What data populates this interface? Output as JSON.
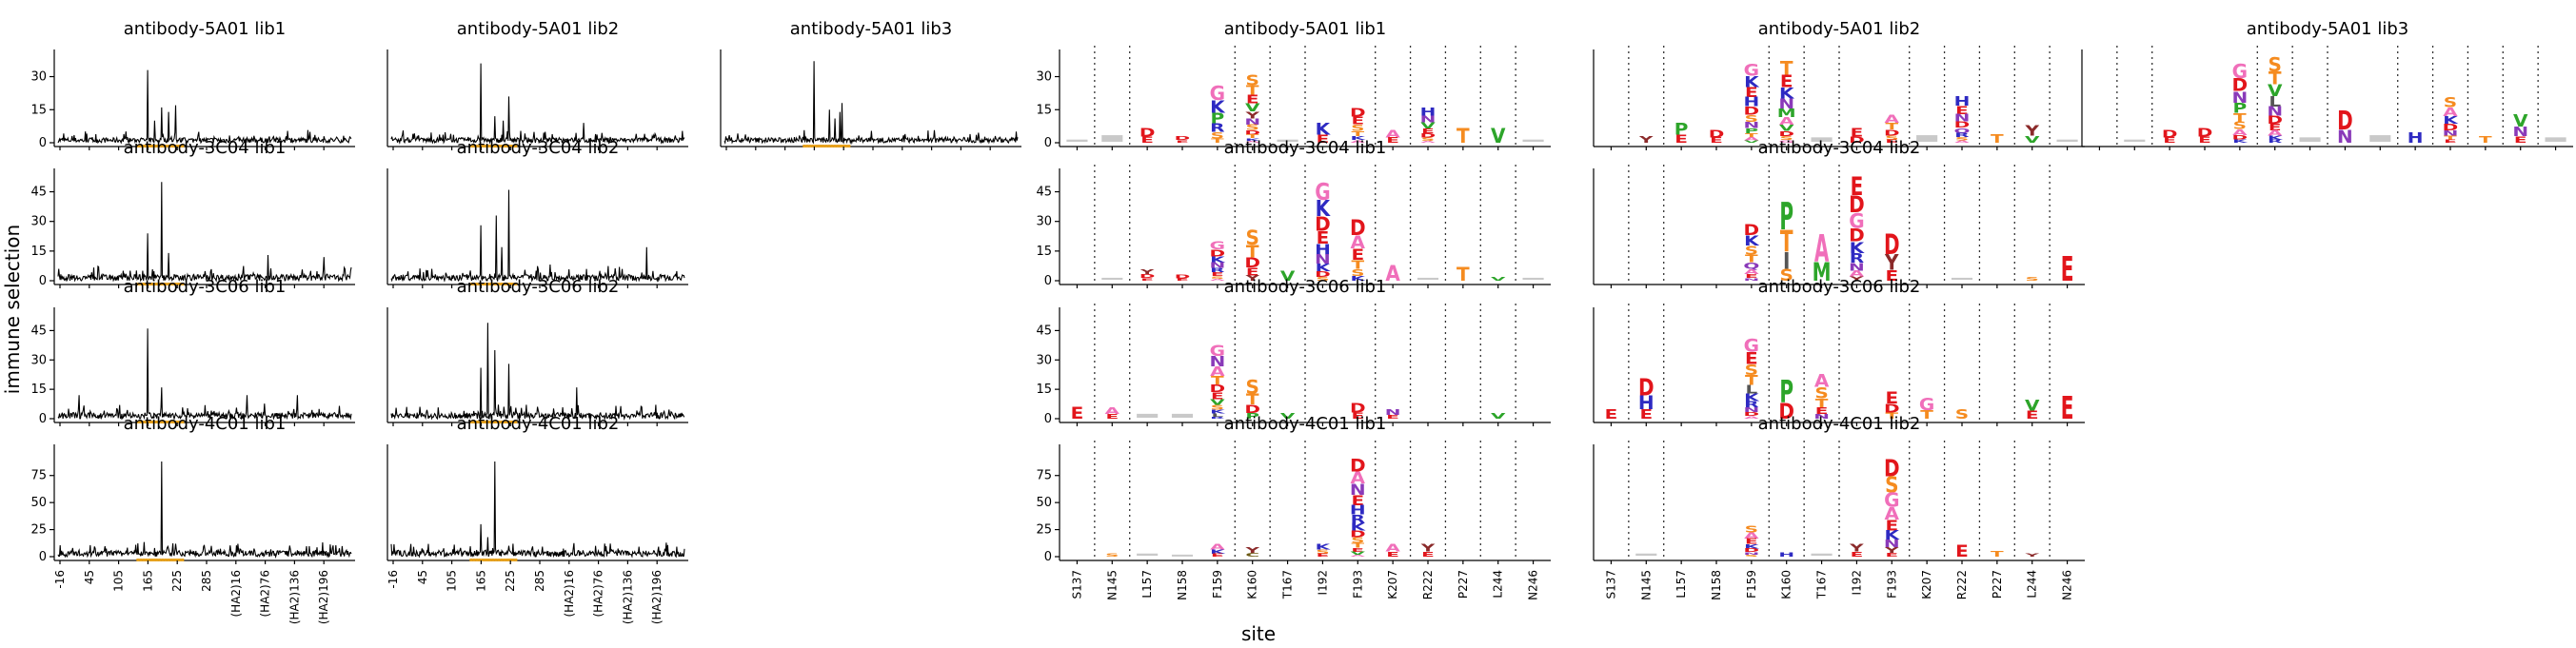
{
  "figure": {
    "ylabel": "immune selection",
    "xlabel": "site"
  },
  "colors": {
    "trace": "#000000",
    "highlight": "#e8a21d",
    "A": "#f06fba",
    "C": "#6e5c16",
    "D": "#e2151b",
    "E": "#e2151b",
    "F": "#2e2ac2",
    "G": "#f06fba",
    "H": "#2e2ac2",
    "I": "#555555",
    "K": "#2e2ac2",
    "L": "#555555",
    "M": "#2da52a",
    "N": "#8a3ab9",
    "P": "#2da52a",
    "Q": "#8a3ab9",
    "R": "#2e2ac2",
    "S": "#f58b1f",
    "T": "#f58b1f",
    "V": "#2da52a",
    "W": "#2da52a",
    "Y": "#8b2a2a"
  },
  "chart_data": {
    "type": "line",
    "sites_tick_labels": [
      "-16",
      "45",
      "105",
      "165",
      "225",
      "285",
      "(HA2)16",
      "(HA2)76",
      "(HA2)136",
      "(HA2)196"
    ],
    "logo_sites": [
      "S137",
      "N145",
      "L157",
      "N158",
      "F159",
      "K160",
      "T167",
      "I192",
      "F193",
      "K207",
      "R222",
      "P227",
      "L244",
      "N246"
    ],
    "rows": [
      {
        "yticks": [
          0,
          15,
          30
        ],
        "ymax": 38,
        "lines": [
          {
            "title": "antibody-5A01 lib1",
            "peaks": [
              [
                128,
                33
              ],
              [
                148,
                16
              ],
              [
                158,
                14
              ],
              [
                168,
                17
              ],
              [
                138,
                10
              ]
            ]
          },
          {
            "title": "antibody-5A01 lib2",
            "peaks": [
              [
                128,
                36
              ],
              [
                168,
                21
              ],
              [
                148,
                12
              ],
              [
                160,
                10
              ],
              [
                275,
                9
              ]
            ]
          },
          {
            "title": "antibody-5A01 lib3",
            "peaks": [
              [
                128,
                37
              ],
              [
                168,
                18
              ],
              [
                150,
                15
              ],
              [
                158,
                11
              ],
              [
                165,
                14
              ]
            ]
          }
        ],
        "logos": [
          {
            "title": "antibody-5A01 lib1",
            "stacks": [
              [
                "S",
                "",
                1
              ],
              [
                "N",
                "",
                3
              ],
              [
                "L",
                "DE",
                7
              ],
              [
                "N",
                "DE",
                3
              ],
              [
                "F",
                "GKPRST",
                26
              ],
              [
                "K",
                "STEVYNSDTKA",
                31
              ],
              [
                "T",
                "",
                1
              ],
              [
                "I",
                "KE",
                9
              ],
              [
                "F",
                "DESTKA",
                16
              ],
              [
                "K",
                "AE",
                6
              ],
              [
                "R",
                "HNVEDSA",
                16
              ],
              [
                "P",
                "T",
                7
              ],
              [
                "L",
                "V",
                7
              ],
              [
                "N",
                "",
                1
              ]
            ]
          },
          {
            "title": "antibody-5A01 lib2",
            "stacks": [
              [
                "S",
                "",
                0
              ],
              [
                "N",
                "Y",
                3
              ],
              [
                "L",
                "PE",
                9
              ],
              [
                "N",
                "DE",
                6
              ],
              [
                "F",
                "GKEHDSNPTAV",
                36
              ],
              [
                "K",
                "TEKNMAVDSG",
                37
              ],
              [
                "T",
                "",
                2
              ],
              [
                "I",
                "ED",
                7
              ],
              [
                "F",
                "ATDSE",
                13
              ],
              [
                "K",
                "",
                3
              ],
              [
                "R",
                "HENDQRSA",
                21
              ],
              [
                "P",
                "T",
                4
              ],
              [
                "L",
                "YV",
                8
              ],
              [
                "N",
                "",
                1
              ]
            ]
          },
          {
            "title": "antibody-5A01 lib3",
            "stacks": [
              [
                "S",
                "",
                0
              ],
              [
                "N",
                "",
                1
              ],
              [
                "L",
                "DE",
                6
              ],
              [
                "N",
                "DE",
                7
              ],
              [
                "F",
                "GDNPTSADK",
                36
              ],
              [
                "K",
                "STVLNDEAKR",
                39
              ],
              [
                "T",
                "",
                2
              ],
              [
                "I",
                "DN",
                15
              ],
              [
                "F",
                "",
                3
              ],
              [
                "K",
                "H",
                5
              ],
              [
                "R",
                "SAKDNTE",
                21
              ],
              [
                "P",
                "T",
                3
              ],
              [
                "L",
                "VNE",
                13
              ],
              [
                "N",
                "",
                2
              ]
            ]
          }
        ]
      },
      {
        "yticks": [
          0,
          15,
          30,
          45
        ],
        "ymax": 52,
        "lines": [
          {
            "title": "antibody-3C04 lib1",
            "peaks": [
              [
                128,
                24
              ],
              [
                148,
                50
              ],
              [
                158,
                14
              ],
              [
                300,
                13
              ],
              [
                380,
                12
              ]
            ]
          },
          {
            "title": "antibody-3C04 lib2",
            "peaks": [
              [
                128,
                28
              ],
              [
                150,
                33
              ],
              [
                168,
                46
              ],
              [
                158,
                17
              ],
              [
                365,
                17
              ]
            ]
          }
        ],
        "logos": [
          {
            "title": "antibody-3C04 lib1",
            "stacks": [
              [
                "S",
                "",
                0
              ],
              [
                "N",
                "",
                1
              ],
              [
                "L",
                "YDE",
                6
              ],
              [
                "N",
                "DE",
                3
              ],
              [
                "F",
                "GDKNRESA",
                20
              ],
              [
                "K",
                "STDEY",
                26
              ],
              [
                "T",
                "V",
                5
              ],
              [
                "I",
                "GKDEHNKDS",
                50
              ],
              [
                "F",
                "DAETSK",
                31
              ],
              [
                "K",
                "A",
                8
              ],
              [
                "R",
                "",
                1
              ],
              [
                "P",
                "T",
                7
              ],
              [
                "L",
                "V",
                2
              ],
              [
                "N",
                "",
                1
              ]
            ]
          },
          {
            "title": "antibody-3C04 lib2",
            "stacks": [
              [
                "S",
                "",
                0
              ],
              [
                "N",
                "",
                0
              ],
              [
                "L",
                "",
                0
              ],
              [
                "N",
                "",
                0
              ],
              [
                "F",
                "DKSTQAEN",
                29
              ],
              [
                "K",
                "PTIS",
                40
              ],
              [
                "T",
                "AM",
                24
              ],
              [
                "I",
                "EDGDKRNAY",
                53
              ],
              [
                "F",
                "DYE",
                24
              ],
              [
                "K",
                "",
                0
              ],
              [
                "R",
                "",
                1
              ],
              [
                "P",
                "",
                0
              ],
              [
                "L",
                "S",
                2
              ],
              [
                "N",
                "E",
                13
              ]
            ]
          }
        ]
      },
      {
        "yticks": [
          0,
          15,
          30,
          45
        ],
        "ymax": 52,
        "lines": [
          {
            "title": "antibody-3C06 lib1",
            "peaks": [
              [
                128,
                46
              ],
              [
                148,
                16
              ],
              [
                270,
                12
              ],
              [
                342,
                12
              ],
              [
                30,
                12
              ]
            ]
          },
          {
            "title": "antibody-3C06 lib2",
            "peaks": [
              [
                138,
                49
              ],
              [
                148,
                35
              ],
              [
                128,
                26
              ],
              [
                168,
                28
              ],
              [
                265,
                16
              ]
            ]
          }
        ],
        "logos": [
          {
            "title": "antibody-3C06 lib1",
            "stacks": [
              [
                "S",
                "E",
                6
              ],
              [
                "N",
                "AE",
                6
              ],
              [
                "L",
                "",
                2
              ],
              [
                "N",
                "",
                2
              ],
              [
                "F",
                "GNATDEVSKLR",
                38
              ],
              [
                "K",
                "STDP",
                20
              ],
              [
                "T",
                "V",
                3
              ],
              [
                "I",
                "",
                0
              ],
              [
                "F",
                "DE",
                8
              ],
              [
                "K",
                "NE",
                5
              ],
              [
                "R",
                "",
                0
              ],
              [
                "P",
                "",
                0
              ],
              [
                "L",
                "V",
                3
              ],
              [
                "N",
                "",
                0
              ]
            ]
          },
          {
            "title": "antibody-3C06 lib2",
            "stacks": [
              [
                "S",
                "E",
                5
              ],
              [
                "N",
                "DHE",
                21
              ],
              [
                "L",
                "",
                0
              ],
              [
                "N",
                "",
                0
              ],
              [
                "F",
                "GESTLKRNDA",
                41
              ],
              [
                "K",
                "PD",
                20
              ],
              [
                "T",
                "ASTEN",
                23
              ],
              [
                "I",
                "",
                0
              ],
              [
                "F",
                "EDT",
                14
              ],
              [
                "K",
                "GT",
                11
              ],
              [
                "R",
                "S",
                5
              ],
              [
                "P",
                "",
                0
              ],
              [
                "L",
                "VE",
                10
              ],
              [
                "N",
                "E",
                12
              ]
            ]
          }
        ]
      },
      {
        "yticks": [
          0,
          25,
          50,
          75
        ],
        "ymax": 95,
        "lines": [
          {
            "title": "antibody-4C01 lib1",
            "peaks": [
              [
                148,
                88
              ],
              [
                168,
                12
              ],
              [
                138,
                8
              ],
              [
                260,
                7
              ],
              [
                30,
                6
              ]
            ]
          },
          {
            "title": "antibody-4C01 lib2",
            "peaks": [
              [
                148,
                88
              ],
              [
                128,
                30
              ],
              [
                138,
                18
              ],
              [
                168,
                10
              ],
              [
                260,
                7
              ]
            ]
          }
        ],
        "logos": [
          {
            "title": "antibody-4C01 lib1",
            "stacks": [
              [
                "S",
                "",
                0
              ],
              [
                "N",
                "S",
                3
              ],
              [
                "L",
                "",
                2
              ],
              [
                "N",
                "",
                1
              ],
              [
                "F",
                "AKE",
                12
              ],
              [
                "K",
                "YC",
                9
              ],
              [
                "T",
                "",
                0
              ],
              [
                "I",
                "KSE",
                12
              ],
              [
                "F",
                "DANEHRKDSTEVA",
                91
              ],
              [
                "K",
                "AE",
                12
              ],
              [
                "R",
                "YE",
                12
              ],
              [
                "P",
                "",
                0
              ],
              [
                "L",
                "",
                0
              ],
              [
                "N",
                "",
                0
              ]
            ]
          },
          {
            "title": "antibody-4C01 lib2",
            "stacks": [
              [
                "S",
                "",
                0
              ],
              [
                "N",
                "",
                2
              ],
              [
                "L",
                "",
                0
              ],
              [
                "N",
                "",
                0
              ],
              [
                "F",
                "SAEKDNS",
                29
              ],
              [
                "K",
                "H",
                4
              ],
              [
                "T",
                "",
                2
              ],
              [
                "I",
                "YE",
                12
              ],
              [
                "F",
                "DSGAEKNYE",
                91
              ],
              [
                "K",
                "",
                0
              ],
              [
                "R",
                "E",
                11
              ],
              [
                "P",
                "T",
                5
              ],
              [
                "L",
                "Y",
                3
              ],
              [
                "N",
                "",
                0
              ]
            ]
          }
        ]
      }
    ]
  }
}
